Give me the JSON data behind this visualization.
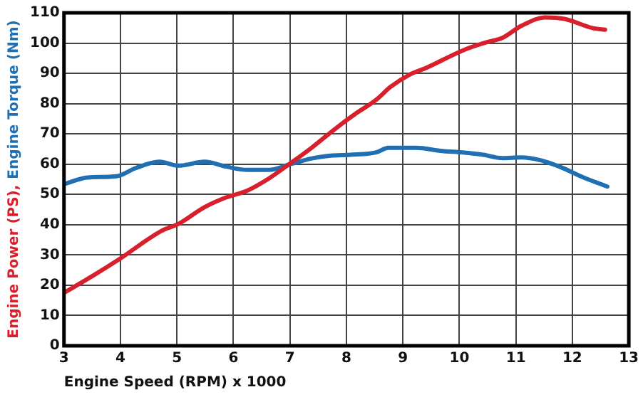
{
  "chart_data": {
    "type": "line",
    "xlabel": "Engine Speed (RPM) x 1000",
    "xlim": [
      3,
      13
    ],
    "xticks": [
      3,
      4,
      5,
      6,
      7,
      8,
      9,
      10,
      11,
      12,
      13
    ],
    "ylim": [
      0,
      110
    ],
    "yticks": [
      0,
      10,
      20,
      30,
      40,
      50,
      60,
      70,
      80,
      90,
      100,
      110
    ],
    "grid": true,
    "legend": false,
    "marker": "none",
    "line_style": "solid",
    "series": [
      {
        "name": "Engine Power (PS),",
        "color": "#d7202c",
        "x": [
          3.0,
          3.5,
          3.97,
          4.73,
          5.03,
          5.49,
          5.87,
          6.25,
          6.63,
          7.01,
          7.39,
          7.81,
          8.15,
          8.53,
          8.78,
          9.12,
          9.41,
          10.09,
          10.47,
          10.76,
          11.1,
          11.52,
          11.86,
          12.37,
          12.58
        ],
        "values": [
          17.5,
          23,
          28.5,
          38,
          40.3,
          45.8,
          49,
          51.3,
          55.3,
          60.3,
          65.5,
          71.8,
          76.5,
          81.3,
          85.5,
          89.6,
          91.8,
          97.8,
          100.2,
          101.7,
          105.7,
          108.5,
          108,
          104.9,
          104.4
        ]
      },
      {
        "name": "Engine Torque (Nm)",
        "color": "#1f6fb2",
        "x": [
          3.0,
          3.42,
          3.93,
          4.27,
          4.69,
          5.03,
          5.49,
          5.87,
          6.25,
          6.63,
          7.01,
          7.39,
          7.73,
          8.07,
          8.53,
          8.74,
          9.24,
          9.66,
          10.09,
          10.42,
          10.76,
          11.1,
          11.43,
          11.77,
          12.2,
          12.62
        ],
        "values": [
          53.4,
          55.6,
          56,
          58.7,
          60.8,
          59.5,
          60.8,
          59.2,
          58.1,
          58.1,
          60,
          61.9,
          62.8,
          63.1,
          63.9,
          65.4,
          65.4,
          64.4,
          63.8,
          63.1,
          62,
          62.2,
          61.3,
          59.2,
          55.6,
          52.6
        ]
      }
    ]
  }
}
